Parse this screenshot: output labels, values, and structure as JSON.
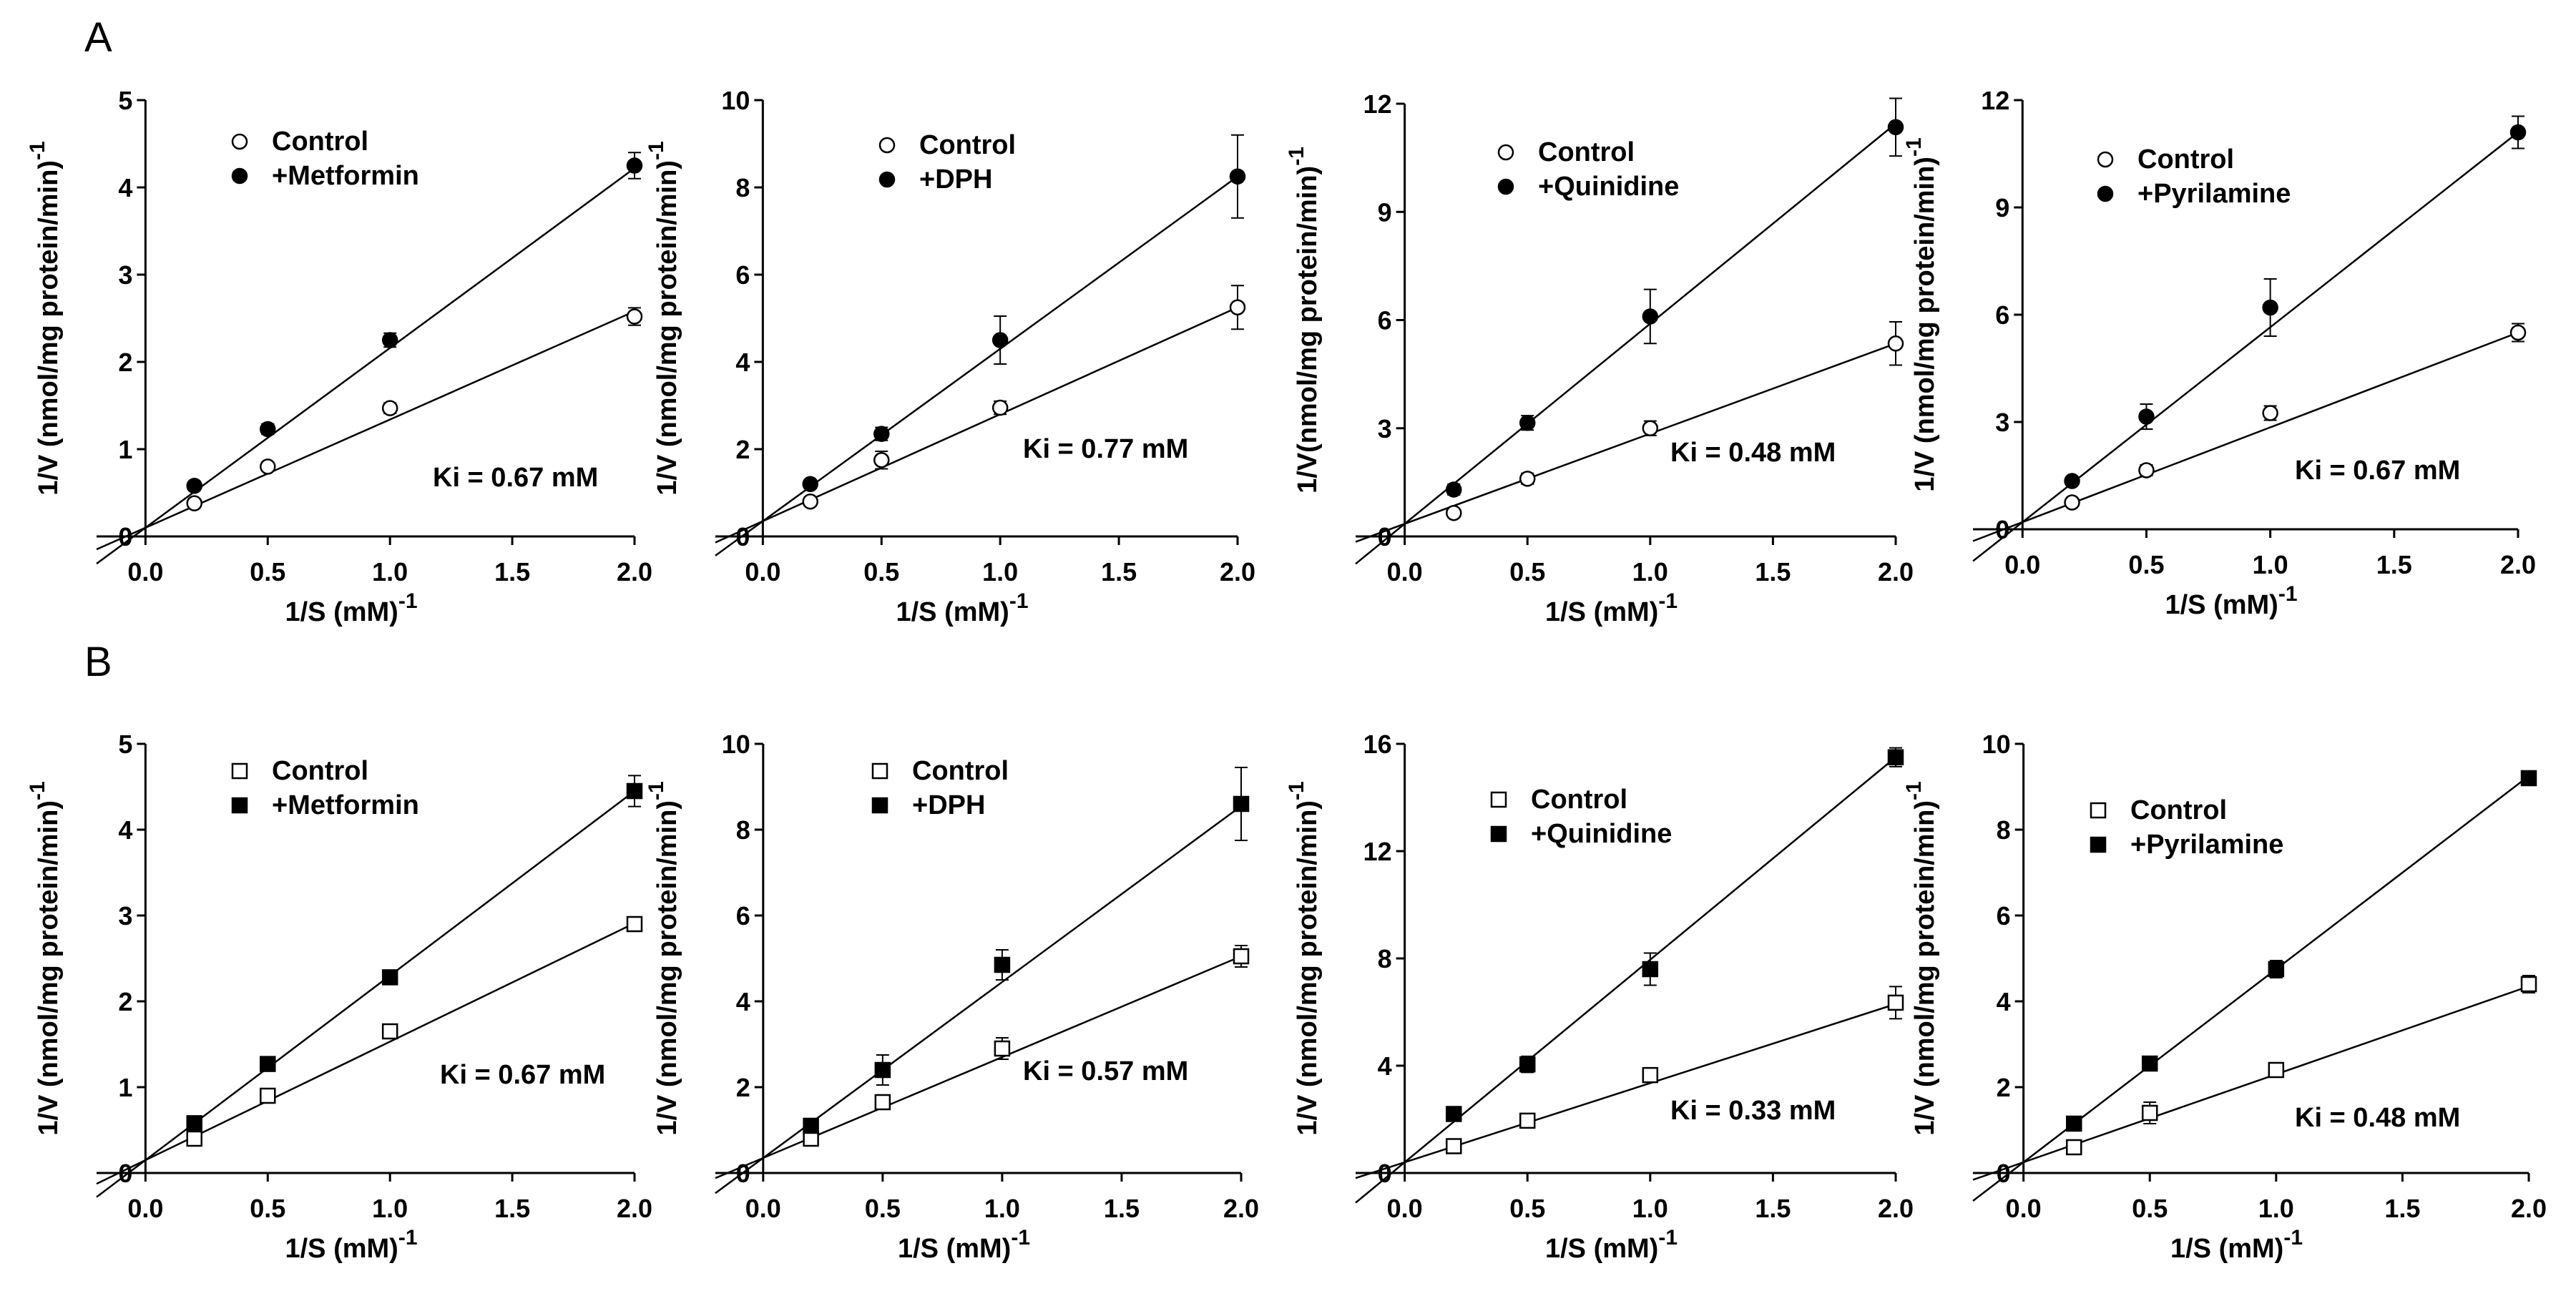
{
  "panel_labels": [
    "A",
    "B"
  ],
  "chart_data": [
    {
      "panel": "A",
      "type": "line",
      "xlabel": "1/S (mM)",
      "xlabel_exp": "-1",
      "ylabel": "1/V (nmol/mg protein/min)",
      "ylabel_exp": "-1",
      "xlim": [
        -0.2,
        2.0
      ],
      "xticks": [
        "0.0",
        "0.5",
        "1.0",
        "1.5",
        "2.0"
      ],
      "ylim": [
        0,
        5
      ],
      "yticks": [
        "0",
        "1",
        "2",
        "3",
        "4",
        "5"
      ],
      "annotation": "Ki = 0.67 mM",
      "marker": "circle",
      "series": [
        {
          "name": "Control",
          "x": [
            0.2,
            0.5,
            1.0,
            2.0
          ],
          "y": [
            0.38,
            0.8,
            1.47,
            2.52
          ],
          "err": [
            0.04,
            0.05,
            0.06,
            0.1
          ],
          "fit": [
            0.1,
            1.24
          ]
        },
        {
          "name": "+Metformin",
          "x": [
            0.2,
            0.5,
            1.0,
            2.0
          ],
          "y": [
            0.58,
            1.23,
            2.25,
            4.25
          ],
          "err": [
            0.05,
            0.06,
            0.08,
            0.15
          ],
          "fit": [
            0.1,
            2.06
          ]
        }
      ]
    },
    {
      "panel": "A",
      "type": "line",
      "xlabel": "1/S (mM)",
      "xlabel_exp": "-1",
      "ylabel": "1/V (nmol/mg protein/min)",
      "ylabel_exp": "-1",
      "xlim": [
        -0.2,
        2.0
      ],
      "xticks": [
        "0.0",
        "0.5",
        "1.0",
        "1.5",
        "2.0"
      ],
      "ylim": [
        0,
        10
      ],
      "yticks": [
        "0",
        "2",
        "4",
        "6",
        "8",
        "10"
      ],
      "annotation": "Ki = 0.77 mM",
      "marker": "circle",
      "series": [
        {
          "name": "Control",
          "x": [
            0.2,
            0.5,
            1.0,
            2.0
          ],
          "y": [
            0.8,
            1.75,
            2.95,
            5.25
          ],
          "err": [
            0.1,
            0.2,
            0.15,
            0.5
          ],
          "fit": [
            0.35,
            2.45
          ]
        },
        {
          "name": "+DPH",
          "x": [
            0.2,
            0.5,
            1.0,
            2.0
          ],
          "y": [
            1.2,
            2.35,
            4.5,
            8.25
          ],
          "err": [
            0.1,
            0.15,
            0.55,
            0.95
          ],
          "fit": [
            0.35,
            3.95
          ]
        }
      ]
    },
    {
      "panel": "A",
      "type": "line",
      "xlabel": "1/S (mM)",
      "xlabel_exp": "-1",
      "ylabel": "1/V(nmol/mg protein/min)",
      "ylabel_exp": "-1",
      "xlim": [
        -0.2,
        2.0
      ],
      "xticks": [
        "0.0",
        "0.5",
        "1.0",
        "1.5",
        "2.0"
      ],
      "ylim": [
        0,
        12
      ],
      "yticks": [
        "0",
        "3",
        "6",
        "9",
        "12"
      ],
      "annotation": "Ki = 0.48 mM",
      "marker": "circle",
      "series": [
        {
          "name": "Control",
          "x": [
            0.2,
            0.5,
            1.0,
            2.0
          ],
          "y": [
            0.65,
            1.6,
            3.0,
            5.35
          ],
          "err": [
            0.1,
            0.15,
            0.2,
            0.6
          ],
          "fit": [
            0.35,
            2.5
          ]
        },
        {
          "name": "+Quinidine",
          "x": [
            0.2,
            0.5,
            1.0,
            2.0
          ],
          "y": [
            1.3,
            3.15,
            6.1,
            11.35
          ],
          "err": [
            0.15,
            0.2,
            0.75,
            0.8
          ],
          "fit": [
            0.35,
            5.55
          ]
        }
      ]
    },
    {
      "panel": "A",
      "type": "line",
      "xlabel": "1/S (mM)",
      "xlabel_exp": "-1",
      "ylabel": "1/V (nmol/mg protein/min)",
      "ylabel_exp": "-1",
      "xlim": [
        -0.2,
        2.0
      ],
      "xticks": [
        "0.0",
        "0.5",
        "1.0",
        "1.5",
        "2.0"
      ],
      "ylim": [
        0,
        12
      ],
      "yticks": [
        "0",
        "3",
        "6",
        "9",
        "12"
      ],
      "annotation": "Ki = 0.67 mM",
      "marker": "circle",
      "series": [
        {
          "name": "Control",
          "x": [
            0.2,
            0.5,
            1.0,
            2.0
          ],
          "y": [
            0.75,
            1.65,
            3.25,
            5.5
          ],
          "err": [
            0.1,
            0.15,
            0.2,
            0.25
          ],
          "fit": [
            0.2,
            2.65
          ]
        },
        {
          "name": "+Pyrilamine",
          "x": [
            0.2,
            0.5,
            1.0,
            2.0
          ],
          "y": [
            1.35,
            3.15,
            6.2,
            11.1
          ],
          "err": [
            0.1,
            0.35,
            0.8,
            0.45
          ],
          "fit": [
            0.2,
            5.45
          ]
        }
      ]
    },
    {
      "panel": "B",
      "type": "line",
      "xlabel": "1/S (mM)",
      "xlabel_exp": "-1",
      "ylabel": "1/V (nmol/mg protein/min)",
      "ylabel_exp": "-1",
      "xlim": [
        -0.2,
        2.0
      ],
      "xticks": [
        "0.0",
        "0.5",
        "1.0",
        "1.5",
        "2.0"
      ],
      "ylim": [
        0,
        5
      ],
      "yticks": [
        "0",
        "1",
        "2",
        "3",
        "4",
        "5"
      ],
      "annotation": "Ki = 0.67 mM",
      "marker": "square",
      "series": [
        {
          "name": "Control",
          "x": [
            0.2,
            0.5,
            1.0,
            2.0
          ],
          "y": [
            0.4,
            0.9,
            1.65,
            2.9
          ],
          "err": [
            0.05,
            0.06,
            0.08,
            0.08
          ],
          "fit": [
            0.15,
            1.38
          ]
        },
        {
          "name": "+Metformin",
          "x": [
            0.2,
            0.5,
            1.0,
            2.0
          ],
          "y": [
            0.58,
            1.27,
            2.28,
            4.45
          ],
          "err": [
            0.05,
            0.06,
            0.08,
            0.18
          ],
          "fit": [
            0.15,
            2.15
          ]
        }
      ]
    },
    {
      "panel": "B",
      "type": "line",
      "xlabel": "1/S (mM)",
      "xlabel_exp": "-1",
      "ylabel": "1/V (nmol/mg protein/min)",
      "ylabel_exp": "-1",
      "xlim": [
        -0.2,
        2.0
      ],
      "xticks": [
        "0.0",
        "0.5",
        "1.0",
        "1.5",
        "2.0"
      ],
      "ylim": [
        0,
        10
      ],
      "yticks": [
        "0",
        "2",
        "4",
        "6",
        "8",
        "10"
      ],
      "annotation": "Ki = 0.57 mM",
      "marker": "square",
      "series": [
        {
          "name": "Control",
          "x": [
            0.2,
            0.5,
            1.0,
            2.0
          ],
          "y": [
            0.8,
            1.65,
            2.9,
            5.05
          ],
          "err": [
            0.1,
            0.15,
            0.25,
            0.25
          ],
          "fit": [
            0.35,
            2.35
          ]
        },
        {
          "name": "+DPH",
          "x": [
            0.2,
            0.5,
            1.0,
            2.0
          ],
          "y": [
            1.1,
            2.4,
            4.85,
            8.6
          ],
          "err": [
            0.1,
            0.35,
            0.35,
            0.85
          ],
          "fit": [
            0.35,
            4.1
          ]
        }
      ]
    },
    {
      "panel": "B",
      "type": "line",
      "xlabel": "1/S (mM)",
      "xlabel_exp": "-1",
      "ylabel": "1/V (nmol/mg protein/min)",
      "ylabel_exp": "-1",
      "xlim": [
        -0.2,
        2.0
      ],
      "xticks": [
        "0.0",
        "0.5",
        "1.0",
        "1.5",
        "2.0"
      ],
      "ylim": [
        0,
        16
      ],
      "yticks": [
        "0",
        "4",
        "8",
        "12",
        "16"
      ],
      "annotation": "Ki = 0.33 mM",
      "marker": "square",
      "series": [
        {
          "name": "Control",
          "x": [
            0.2,
            0.5,
            1.0,
            2.0
          ],
          "y": [
            1.0,
            1.95,
            3.65,
            6.35
          ],
          "err": [
            0.1,
            0.15,
            0.2,
            0.6
          ],
          "fit": [
            0.4,
            2.95
          ]
        },
        {
          "name": "+Quinidine",
          "x": [
            0.2,
            0.5,
            1.0,
            2.0
          ],
          "y": [
            2.2,
            4.05,
            7.6,
            15.5
          ],
          "err": [
            0.15,
            0.3,
            0.6,
            0.35
          ],
          "fit": [
            0.4,
            7.55
          ]
        }
      ]
    },
    {
      "panel": "B",
      "type": "line",
      "xlabel": "1/S (mM)",
      "xlabel_exp": "-1",
      "ylabel": "1/V (nmol/mg protein/min)",
      "ylabel_exp": "-1",
      "xlim": [
        -0.2,
        2.0
      ],
      "xticks": [
        "0.0",
        "0.5",
        "1.0",
        "1.5",
        "2.0"
      ],
      "ylim": [
        0,
        10
      ],
      "yticks": [
        "0",
        "2",
        "4",
        "6",
        "8",
        "10"
      ],
      "annotation": "Ki = 0.48 mM",
      "marker": "square",
      "series": [
        {
          "name": "Control",
          "x": [
            0.2,
            0.5,
            1.0,
            2.0
          ],
          "y": [
            0.6,
            1.4,
            2.4,
            4.4
          ],
          "err": [
            0.08,
            0.25,
            0.12,
            0.2
          ],
          "fit": [
            0.25,
            2.05
          ]
        },
        {
          "name": "+Pyrilamine",
          "x": [
            0.2,
            0.5,
            1.0,
            2.0
          ],
          "y": [
            1.15,
            2.55,
            4.75,
            9.2
          ],
          "err": [
            0.08,
            0.1,
            0.2,
            0.1
          ],
          "fit": [
            0.25,
            4.5
          ]
        }
      ]
    }
  ]
}
